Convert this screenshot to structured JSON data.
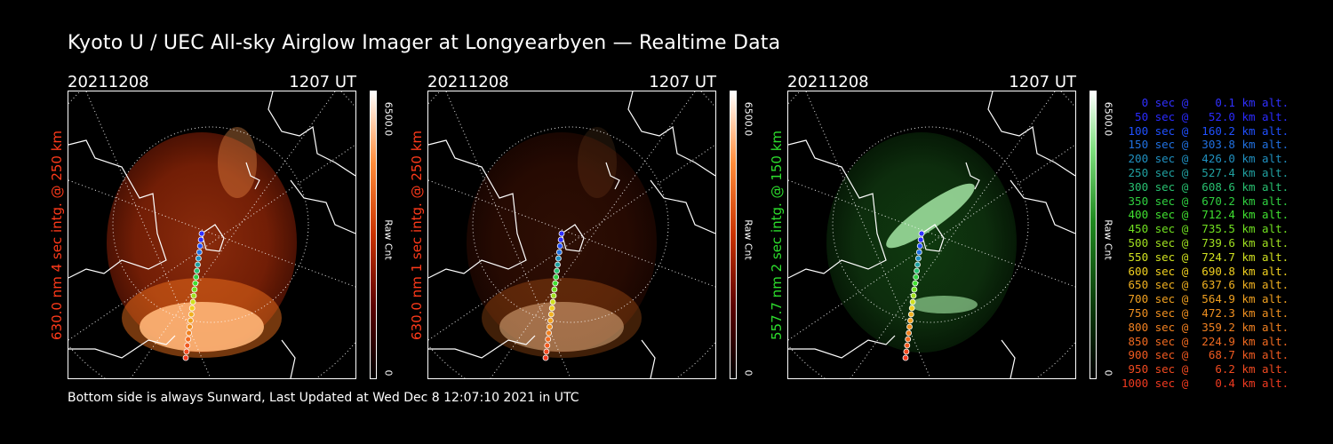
{
  "title": "Kyoto U / UEC All-sky Airglow Imager at Longyearbyen — Realtime Data",
  "footer": "Bottom side is always Sunward, Last Updated at Wed Dec  8 12:07:10 2021 in UTC",
  "panels": [
    {
      "date": "20211208",
      "time": "1207 UT",
      "ylabel": "630.0 nm 4 sec intg. @ 250 km",
      "label_color": "#ff3a1a",
      "cbar_max": "6500.0",
      "cbar_min": "0",
      "cbar_title": "Raw Cnt",
      "palette": "red",
      "intensity": 0.75
    },
    {
      "date": "20211208",
      "time": "1207 UT",
      "ylabel": "630.0 nm 1 sec intg. @ 250 km",
      "label_color": "#ff3a1a",
      "cbar_max": "6500.0",
      "cbar_min": "0",
      "cbar_title": "Raw Cnt",
      "palette": "red",
      "intensity": 0.25
    },
    {
      "date": "20211208",
      "time": "1207 UT",
      "ylabel": "557.7 nm 2 sec intg. @ 150 km",
      "label_color": "#2dde2d",
      "cbar_max": "6500.0",
      "cbar_min": "0",
      "cbar_title": "Raw Cnt",
      "palette": "green",
      "intensity": 0.55
    }
  ],
  "legend": [
    {
      "text": "   0 sec @    0.1 km alt.",
      "color": "#3030ff"
    },
    {
      "text": "  50 sec @   52.0 km alt.",
      "color": "#2a2aff"
    },
    {
      "text": " 100 sec @  160.2 km alt.",
      "color": "#2050ff"
    },
    {
      "text": " 150 sec @  303.8 km alt.",
      "color": "#2070e0"
    },
    {
      "text": " 200 sec @  426.0 km alt.",
      "color": "#2090c0"
    },
    {
      "text": " 250 sec @  527.4 km alt.",
      "color": "#20a0a0"
    },
    {
      "text": " 300 sec @  608.6 km alt.",
      "color": "#28c070"
    },
    {
      "text": " 350 sec @  670.2 km alt.",
      "color": "#30d040"
    },
    {
      "text": " 400 sec @  712.4 km alt.",
      "color": "#40e030"
    },
    {
      "text": " 450 sec @  735.5 km alt.",
      "color": "#70e020"
    },
    {
      "text": " 500 sec @  739.6 km alt.",
      "color": "#a0e020"
    },
    {
      "text": " 550 sec @  724.7 km alt.",
      "color": "#d0e020"
    },
    {
      "text": " 600 sec @  690.8 km alt.",
      "color": "#f0d020"
    },
    {
      "text": " 650 sec @  637.6 km alt.",
      "color": "#f0b020"
    },
    {
      "text": " 700 sec @  564.9 km alt.",
      "color": "#f0a020"
    },
    {
      "text": " 750 sec @  472.3 km alt.",
      "color": "#f09020"
    },
    {
      "text": " 800 sec @  359.2 km alt.",
      "color": "#f08020"
    },
    {
      "text": " 850 sec @  224.9 km alt.",
      "color": "#f06a20"
    },
    {
      "text": " 900 sec @   68.7 km alt.",
      "color": "#f05a20"
    },
    {
      "text": " 950 sec @    6.2 km alt.",
      "color": "#f04a20"
    },
    {
      "text": "1000 sec @    0.4 km alt.",
      "color": "#f03a20"
    }
  ]
}
